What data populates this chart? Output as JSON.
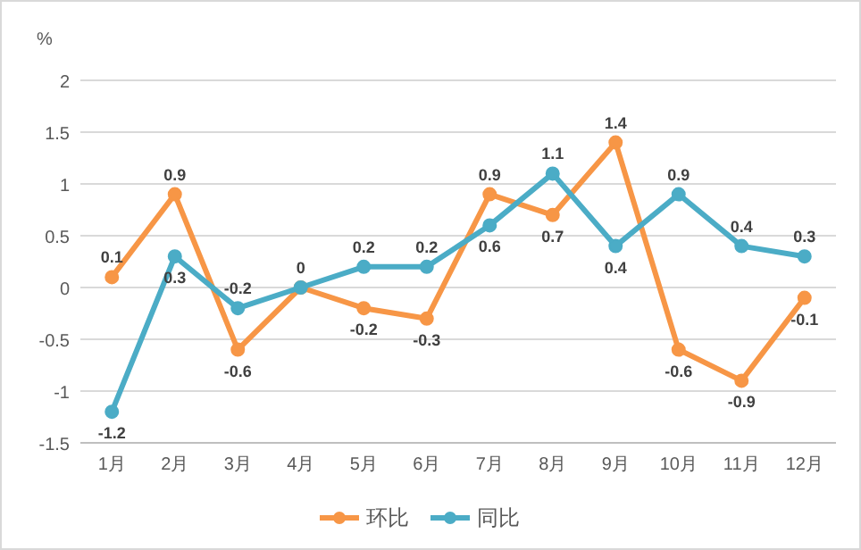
{
  "chart_data": {
    "type": "line",
    "ylabel": "%",
    "categories": [
      "1月",
      "2月",
      "3月",
      "4月",
      "5月",
      "6月",
      "7月",
      "8月",
      "9月",
      "10月",
      "11月",
      "12月"
    ],
    "series": [
      {
        "name": "环比",
        "color": "#f79646",
        "values": [
          0.1,
          0.9,
          -0.6,
          0,
          -0.2,
          -0.3,
          0.9,
          0.7,
          1.4,
          -0.6,
          -0.9,
          -0.1
        ],
        "value_labels": [
          "0.1",
          "0.9",
          "-0.6",
          null,
          "-0.2",
          "-0.3",
          "0.9",
          "0.7",
          "1.4",
          "-0.6",
          "-0.9",
          "-0.1"
        ]
      },
      {
        "name": "同比",
        "color": "#4bacc6",
        "values": [
          -1.2,
          0.3,
          -0.2,
          0,
          0.2,
          0.2,
          0.6,
          1.1,
          0.4,
          0.9,
          0.4,
          0.3
        ],
        "value_labels": [
          "-1.2",
          "0.3",
          "-0.2",
          "0",
          "0.2",
          "0.2",
          "0.6",
          "1.1",
          "0.4",
          "0.9",
          "0.4",
          "0.3"
        ]
      }
    ],
    "ylim": [
      -1.5,
      2
    ],
    "yticks": [
      -1.5,
      -1,
      -0.5,
      0,
      0.5,
      1,
      1.5,
      2
    ],
    "grid": "y",
    "legend": "bottom",
    "marker": "circle",
    "line_style": "solid"
  }
}
